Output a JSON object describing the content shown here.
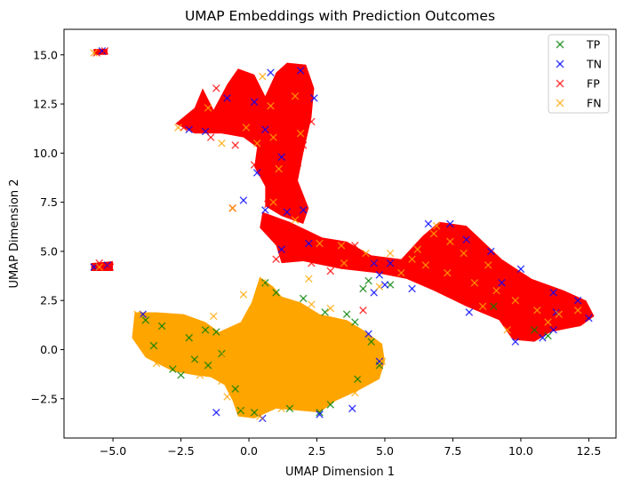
{
  "chart_data": {
    "type": "scatter",
    "title": "UMAP Embeddings with Prediction Outcomes",
    "xlabel": "UMAP Dimension 1",
    "ylabel": "UMAP Dimension 2",
    "xlim": [
      -6.8,
      13.5
    ],
    "ylim": [
      -4.5,
      16.3
    ],
    "xticks": [
      -5.0,
      -2.5,
      0.0,
      2.5,
      5.0,
      7.5,
      10.0,
      12.5
    ],
    "xtick_labels": [
      "−5.0",
      "−2.5",
      "0.0",
      "2.5",
      "5.0",
      "7.5",
      "10.0",
      "12.5"
    ],
    "yticks": [
      -2.5,
      0.0,
      2.5,
      5.0,
      7.5,
      10.0,
      12.5,
      15.0
    ],
    "ytick_labels": [
      "−2.5",
      "0.0",
      "2.5",
      "5.0",
      "7.5",
      "10.0",
      "12.5",
      "15.0"
    ],
    "grid": false,
    "legend_position": "top-right",
    "marker": "x",
    "series": [
      {
        "name": "TP",
        "color": "#008000",
        "points": [
          [
            -3.2,
            1.2
          ],
          [
            -1.6,
            1.0
          ],
          [
            -1.2,
            0.9
          ],
          [
            -2.8,
            -1.0
          ],
          [
            -2.5,
            -1.3
          ],
          [
            -1.5,
            -0.8
          ],
          [
            -3.5,
            0.2
          ],
          [
            -2.0,
            -0.5
          ],
          [
            -1.0,
            -0.2
          ],
          [
            -0.5,
            -2.0
          ],
          [
            0.2,
            -3.2
          ],
          [
            1.5,
            -3.0
          ],
          [
            3.0,
            -2.8
          ],
          [
            4.0,
            -1.5
          ],
          [
            4.8,
            -0.8
          ],
          [
            4.5,
            0.4
          ],
          [
            3.6,
            1.8
          ],
          [
            2.0,
            2.6
          ],
          [
            1.0,
            2.9
          ],
          [
            4.2,
            3.1
          ],
          [
            4.4,
            3.5
          ],
          [
            5.2,
            3.3
          ],
          [
            9.0,
            2.2
          ],
          [
            10.5,
            1.0
          ],
          [
            11.0,
            0.7
          ],
          [
            3.9,
            1.4
          ],
          [
            -0.3,
            -3.1
          ],
          [
            2.6,
            -3.2
          ],
          [
            -3.8,
            1.5
          ],
          [
            -2.2,
            0.6
          ],
          [
            0.6,
            3.4
          ],
          [
            2.8,
            1.9
          ]
        ]
      },
      {
        "name": "TN",
        "color": "#0000ff",
        "points": [
          [
            -1.6,
            11.1
          ],
          [
            -2.2,
            11.2
          ],
          [
            -0.8,
            12.8
          ],
          [
            0.8,
            14.1
          ],
          [
            1.9,
            14.2
          ],
          [
            2.4,
            12.8
          ],
          [
            0.2,
            12.6
          ],
          [
            0.6,
            11.2
          ],
          [
            0.3,
            9.0
          ],
          [
            1.2,
            9.8
          ],
          [
            1.4,
            7.0
          ],
          [
            0.6,
            7.1
          ],
          [
            2.0,
            7.1
          ],
          [
            2.2,
            5.4
          ],
          [
            1.2,
            5.1
          ],
          [
            4.6,
            4.4
          ],
          [
            4.8,
            3.8
          ],
          [
            5.2,
            4.4
          ],
          [
            6.6,
            6.4
          ],
          [
            7.4,
            6.4
          ],
          [
            8.0,
            5.6
          ],
          [
            8.9,
            5.0
          ],
          [
            10.0,
            4.1
          ],
          [
            11.2,
            2.9
          ],
          [
            12.1,
            2.5
          ],
          [
            12.5,
            1.6
          ],
          [
            11.2,
            1.0
          ],
          [
            10.8,
            0.6
          ],
          [
            9.8,
            0.4
          ],
          [
            8.1,
            1.9
          ],
          [
            6.0,
            3.1
          ],
          [
            4.6,
            2.9
          ],
          [
            5.0,
            3.3
          ],
          [
            -5.2,
            4.3
          ],
          [
            -5.7,
            4.2
          ],
          [
            -5.4,
            15.2
          ],
          [
            3.8,
            -3.0
          ],
          [
            4.8,
            -0.6
          ],
          [
            -3.9,
            1.8
          ],
          [
            -1.2,
            -3.2
          ],
          [
            0.5,
            -3.5
          ],
          [
            2.6,
            -3.3
          ],
          [
            4.4,
            0.8
          ],
          [
            -0.2,
            7.6
          ],
          [
            9.3,
            3.4
          ],
          [
            11.3,
            1.9
          ]
        ]
      },
      {
        "name": "FP",
        "color": "#ff0000",
        "points": [
          [
            -1.4,
            10.8
          ],
          [
            -2.4,
            11.3
          ],
          [
            -1.8,
            11.9
          ],
          [
            -0.9,
            12.4
          ],
          [
            -0.2,
            11.7
          ],
          [
            0.5,
            12.3
          ],
          [
            1.2,
            13.6
          ],
          [
            1.6,
            14.3
          ],
          [
            2.0,
            13.1
          ],
          [
            2.3,
            11.6
          ],
          [
            1.5,
            10.6
          ],
          [
            0.8,
            10.1
          ],
          [
            0.2,
            9.4
          ],
          [
            0.8,
            8.7
          ],
          [
            1.4,
            8.3
          ],
          [
            1.6,
            7.6
          ],
          [
            0.7,
            7.4
          ],
          [
            1.0,
            6.2
          ],
          [
            1.9,
            5.8
          ],
          [
            2.8,
            5.2
          ],
          [
            3.4,
            4.9
          ],
          [
            3.9,
            5.3
          ],
          [
            4.5,
            4.6
          ],
          [
            5.4,
            4.3
          ],
          [
            6.1,
            4.9
          ],
          [
            6.6,
            5.7
          ],
          [
            7.1,
            6.1
          ],
          [
            7.7,
            5.9
          ],
          [
            8.3,
            5.3
          ],
          [
            8.8,
            4.6
          ],
          [
            9.3,
            3.9
          ],
          [
            9.9,
            3.4
          ],
          [
            10.4,
            2.9
          ],
          [
            10.9,
            2.4
          ],
          [
            11.4,
            2.1
          ],
          [
            11.9,
            2.0
          ],
          [
            12.3,
            1.7
          ],
          [
            10.3,
            1.4
          ],
          [
            9.7,
            1.2
          ],
          [
            8.9,
            2.5
          ],
          [
            8.0,
            3.6
          ],
          [
            7.0,
            3.9
          ],
          [
            5.8,
            4.0
          ],
          [
            2.3,
            4.4
          ],
          [
            1.0,
            4.6
          ],
          [
            -0.6,
            7.2
          ],
          [
            -5.6,
            15.1
          ],
          [
            -5.3,
            15.2
          ],
          [
            -5.1,
            4.2
          ],
          [
            -5.5,
            4.4
          ],
          [
            4.2,
            2.0
          ],
          [
            0.3,
            11.1
          ],
          [
            1.8,
            9.5
          ],
          [
            0.1,
            13.5
          ],
          [
            -0.5,
            10.4
          ],
          [
            -1.2,
            13.3
          ],
          [
            1.1,
            11.9
          ],
          [
            2.0,
            10.4
          ],
          [
            6.3,
            5.3
          ],
          [
            7.4,
            4.6
          ],
          [
            8.5,
            3.1
          ],
          [
            9.5,
            2.3
          ],
          [
            11.6,
            1.3
          ],
          [
            3.0,
            4.0
          ]
        ]
      },
      {
        "name": "FN",
        "color": "#ffa500",
        "points": [
          [
            -4.1,
            1.8
          ],
          [
            -3.4,
            1.3
          ],
          [
            -2.6,
            1.6
          ],
          [
            -1.9,
            1.1
          ],
          [
            -1.3,
            0.6
          ],
          [
            -3.8,
            0.4
          ],
          [
            -3.0,
            -0.2
          ],
          [
            -2.2,
            -0.8
          ],
          [
            -1.6,
            -0.2
          ],
          [
            -0.9,
            -0.3
          ],
          [
            -0.3,
            0.6
          ],
          [
            0.4,
            1.5
          ],
          [
            1.1,
            2.3
          ],
          [
            1.9,
            1.7
          ],
          [
            2.6,
            1.0
          ],
          [
            3.3,
            0.9
          ],
          [
            4.0,
            0.5
          ],
          [
            4.6,
            -0.1
          ],
          [
            4.9,
            -0.6
          ],
          [
            4.2,
            -1.2
          ],
          [
            3.5,
            -1.8
          ],
          [
            2.8,
            -2.6
          ],
          [
            2.0,
            -2.9
          ],
          [
            1.2,
            -3.0
          ],
          [
            0.4,
            -3.4
          ],
          [
            -0.3,
            -3.0
          ],
          [
            -0.8,
            -2.4
          ],
          [
            -1.0,
            -1.6
          ],
          [
            -0.4,
            -1.0
          ],
          [
            0.5,
            -0.5
          ],
          [
            1.3,
            -1.2
          ],
          [
            2.1,
            -0.6
          ],
          [
            2.9,
            0.1
          ],
          [
            3.6,
            -0.3
          ],
          [
            0.3,
            -1.9
          ],
          [
            1.6,
            -2.0
          ],
          [
            -0.2,
            2.8
          ],
          [
            0.5,
            3.4
          ],
          [
            -2.5,
            0.2
          ],
          [
            -3.4,
            -0.7
          ],
          [
            -1.8,
            -1.3
          ],
          [
            4.4,
            -0.9
          ],
          [
            2.3,
            2.3
          ],
          [
            3.0,
            2.1
          ],
          [
            1.5,
            0.3
          ],
          [
            0.0,
            0.2
          ],
          [
            -1.3,
            1.7
          ],
          [
            1.0,
            -2.4
          ],
          [
            3.9,
            -2.2
          ],
          [
            2.7,
            -1.5
          ],
          [
            -2.6,
            11.3
          ],
          [
            -5.5,
            4.2
          ],
          [
            -5.7,
            15.1
          ],
          [
            0.8,
            12.4
          ],
          [
            1.7,
            12.9
          ],
          [
            0.3,
            10.5
          ],
          [
            1.1,
            9.2
          ],
          [
            0.9,
            7.5
          ],
          [
            1.7,
            6.6
          ],
          [
            2.6,
            5.4
          ],
          [
            3.4,
            5.3
          ],
          [
            4.3,
            4.9
          ],
          [
            5.2,
            4.9
          ],
          [
            6.2,
            5.1
          ],
          [
            6.8,
            5.9
          ],
          [
            7.4,
            5.5
          ],
          [
            7.9,
            4.9
          ],
          [
            6.5,
            4.3
          ],
          [
            7.3,
            3.9
          ],
          [
            8.3,
            3.4
          ],
          [
            9.1,
            3.0
          ],
          [
            9.8,
            2.5
          ],
          [
            10.6,
            2.0
          ],
          [
            11.4,
            1.8
          ],
          [
            12.1,
            2.0
          ],
          [
            9.5,
            1.0
          ],
          [
            8.6,
            2.2
          ],
          [
            5.6,
            3.9
          ],
          [
            -0.6,
            7.2
          ],
          [
            0.5,
            13.9
          ],
          [
            1.9,
            11.0
          ],
          [
            -1.5,
            12.3
          ],
          [
            4.8,
            3.2
          ],
          [
            2.2,
            3.6
          ],
          [
            6.9,
            6.3
          ],
          [
            -0.1,
            11.3
          ],
          [
            -1.0,
            10.5
          ],
          [
            0.9,
            10.8
          ],
          [
            11.0,
            1.4
          ],
          [
            8.8,
            4.3
          ],
          [
            3.5,
            4.4
          ],
          [
            6.0,
            4.6
          ]
        ]
      }
    ]
  }
}
